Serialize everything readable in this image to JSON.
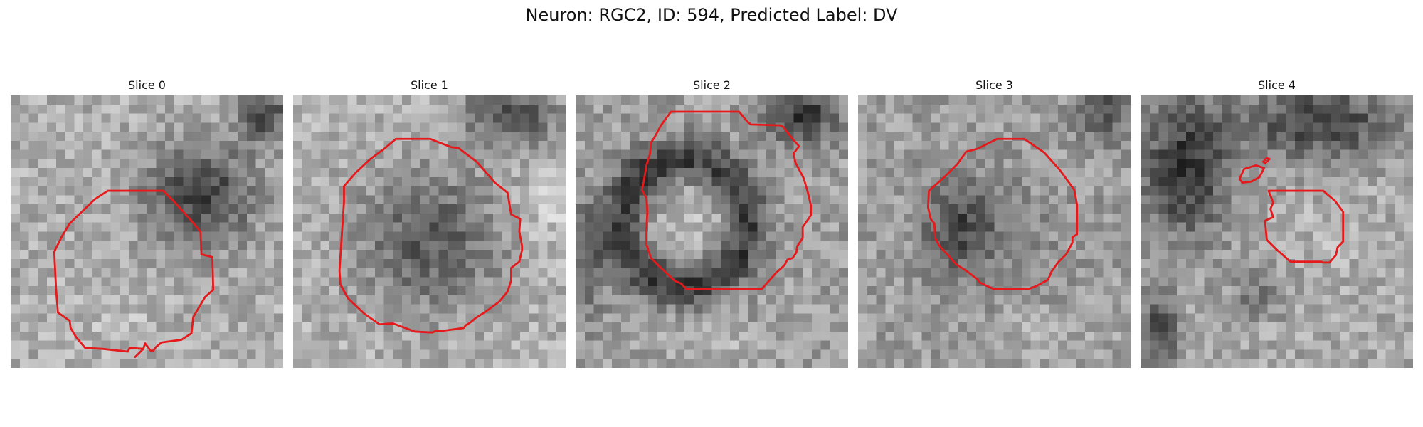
{
  "figure": {
    "title": "Neuron: RGC2, ID: 594, Predicted Label: DV"
  },
  "colors": {
    "contour": "#e41a1c",
    "background": "#ffffff",
    "text": "#111111"
  },
  "slices": [
    {
      "label": "Slice 0"
    },
    {
      "label": "Slice 1"
    },
    {
      "label": "Slice 2"
    },
    {
      "label": "Slice 3"
    },
    {
      "label": "Slice 4"
    }
  ]
}
